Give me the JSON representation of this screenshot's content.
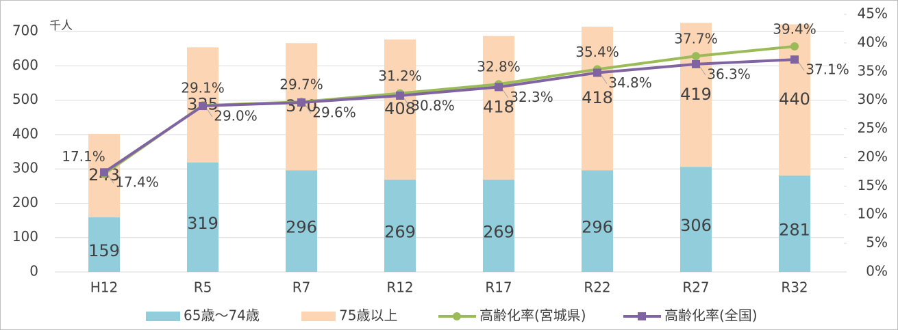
{
  "chart_data": {
    "type": "bar",
    "stacked": true,
    "y_axis_label": "千人",
    "categories": [
      "H12",
      "R5",
      "R7",
      "R12",
      "R17",
      "R22",
      "R27",
      "R32"
    ],
    "series": [
      {
        "name": "65歳～74歳",
        "color": "#92cddc",
        "values": [
          159,
          319,
          296,
          269,
          269,
          296,
          306,
          281
        ]
      },
      {
        "name": "75歳以上",
        "color": "#fcd5b5",
        "values": [
          243,
          335,
          370,
          408,
          418,
          418,
          419,
          440
        ]
      },
      {
        "name": "高齢化率(宮城県)",
        "type": "line",
        "axis": "y2",
        "marker": "circle",
        "color": "#9bbb59",
        "values": [
          17.1,
          29.1,
          29.7,
          31.2,
          32.8,
          35.4,
          37.7,
          39.4
        ],
        "value_labels": [
          "17.1%",
          "29.1%",
          "29.7%",
          "31.2%",
          "32.8%",
          "35.4%",
          "37.7%",
          "39.4%"
        ]
      },
      {
        "name": "高齢化率(全国)",
        "type": "line",
        "axis": "y2",
        "marker": "square",
        "color": "#8064a2",
        "values": [
          17.4,
          29.0,
          29.6,
          30.8,
          32.3,
          34.8,
          36.3,
          37.1
        ],
        "value_labels": [
          "17.4%",
          "29.0%",
          "29.6%",
          "30.8%",
          "32.3%",
          "34.8%",
          "36.3%",
          "37.1%"
        ]
      }
    ],
    "ylim": [
      0,
      750
    ],
    "yticks": [
      0,
      100,
      200,
      300,
      400,
      500,
      600,
      700
    ],
    "y2lim": [
      0,
      45
    ],
    "y2ticks": [
      {
        "value": 0,
        "label": "0%"
      },
      {
        "value": 5,
        "label": "5%"
      },
      {
        "value": 10,
        "label": "10%"
      },
      {
        "value": 15,
        "label": "15%"
      },
      {
        "value": 20,
        "label": "20%"
      },
      {
        "value": 25,
        "label": "25%"
      },
      {
        "value": 30,
        "label": "30%"
      },
      {
        "value": 35,
        "label": "35%"
      },
      {
        "value": 40,
        "label": "40%"
      },
      {
        "value": 45,
        "label": "45%"
      }
    ],
    "grid": true,
    "legend": "bottom"
  }
}
